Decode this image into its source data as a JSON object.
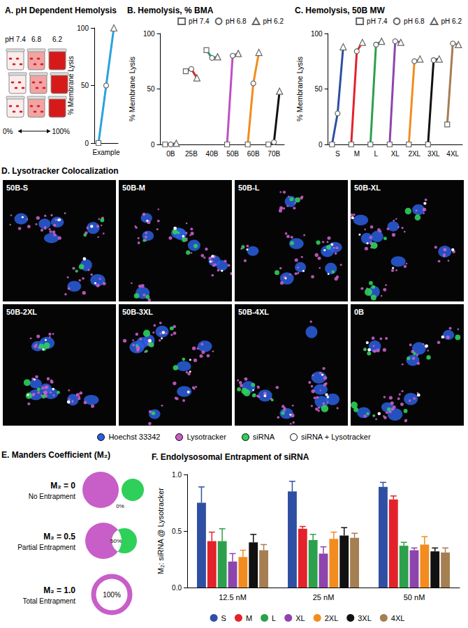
{
  "chart_data": [
    {
      "type": "dot_line",
      "title": "A. pH Dependent Hemolysis",
      "xlabel": "Example",
      "ylabel": "% Membrane Lysis",
      "categories": [
        null
      ],
      "colors": [
        "#29a3dc"
      ],
      "series": [
        {
          "marker": "square",
          "values": [
            0
          ]
        },
        {
          "marker": "circle",
          "values": [
            50
          ]
        },
        {
          "marker": "triangle",
          "values": [
            100
          ]
        }
      ],
      "ylim": [
        0,
        100
      ],
      "yticks": [
        0,
        50,
        100
      ],
      "grid": false,
      "tick_labels": "y"
    },
    {
      "type": "dot_line",
      "title": "B. Hemolysis, % BMA",
      "ylabel": "% Membrane Lysis",
      "categories": [
        "0B",
        "25B",
        "40B",
        "50B",
        "60B",
        "70B"
      ],
      "colors": [
        "#555555",
        "#e3222b",
        "#1f9e89",
        "#c04fc4",
        "#f28c1e",
        "#111111"
      ],
      "series": [
        {
          "name": "pH 7.4",
          "marker": "square",
          "values": [
            0,
            66,
            85,
            0,
            0,
            0
          ]
        },
        {
          "name": "pH 6.8",
          "marker": "circle",
          "values": [
            0,
            68,
            78,
            80,
            55,
            2
          ]
        },
        {
          "name": "pH 6.2",
          "marker": "triangle",
          "values": [
            1,
            60,
            79,
            82,
            83,
            48
          ]
        }
      ],
      "ylim": [
        0,
        100
      ],
      "yticks": [
        0,
        50,
        100
      ],
      "grid": false,
      "legend": "top-right"
    },
    {
      "type": "dot_line",
      "title": "C. Hemolysis, 50B MW",
      "ylabel": "% Membrane Lysis",
      "categories": [
        "S",
        "M",
        "L",
        "XL",
        "2XL",
        "3XL",
        "4XL"
      ],
      "colors": [
        "#2e4fa3",
        "#e3222b",
        "#2ca04c",
        "#8e44ad",
        "#f28c1e",
        "#111111",
        "#a57e52"
      ],
      "series": [
        {
          "name": "pH 7.4",
          "marker": "square",
          "values": [
            0,
            0,
            0,
            0,
            0,
            0,
            18
          ]
        },
        {
          "name": "pH 6.8",
          "marker": "circle",
          "values": [
            28,
            84,
            90,
            93,
            75,
            76,
            91
          ]
        },
        {
          "name": "pH 6.2",
          "marker": "triangle",
          "values": [
            88,
            92,
            93,
            92,
            77,
            77,
            90
          ]
        }
      ],
      "ylim": [
        0,
        100
      ],
      "yticks": [
        0,
        50,
        100
      ],
      "grid": false,
      "legend": "top-right"
    },
    {
      "type": "bar",
      "title": "F. Endolysosomal Entrapment of siRNA",
      "ylabel": "M₂: siRNA @ Lysotracker",
      "categories": [
        "12.5 nM",
        "25 nM",
        "50 nM"
      ],
      "series": [
        {
          "name": "S",
          "color": "#2e4fa3",
          "values": [
            0.75,
            0.85,
            0.89
          ],
          "errors": [
            0.14,
            0.09,
            0.04
          ]
        },
        {
          "name": "M",
          "color": "#e3222b",
          "values": [
            0.41,
            0.52,
            0.78
          ],
          "errors": [
            0.08,
            0.02,
            0.03
          ]
        },
        {
          "name": "L",
          "color": "#2ca04c",
          "values": [
            0.41,
            0.42,
            0.37
          ],
          "errors": [
            0.11,
            0.05,
            0.03
          ]
        },
        {
          "name": "XL",
          "color": "#8e44ad",
          "values": [
            0.23,
            0.3,
            0.33
          ],
          "errors": [
            0.07,
            0.06,
            0.02
          ]
        },
        {
          "name": "2XL",
          "color": "#f28c1e",
          "values": [
            0.27,
            0.43,
            0.38
          ],
          "errors": [
            0.06,
            0.06,
            0.07
          ]
        },
        {
          "name": "3XL",
          "color": "#111111",
          "values": [
            0.4,
            0.46,
            0.32
          ],
          "errors": [
            0.07,
            0.07,
            0.03
          ]
        },
        {
          "name": "4XL",
          "color": "#a57e52",
          "values": [
            0.33,
            0.44,
            0.31
          ],
          "errors": [
            0.05,
            0.04,
            0.04
          ]
        }
      ],
      "ylim": [
        0,
        1
      ],
      "yticks": [
        {
          "value": 0,
          "label": "0.0"
        },
        {
          "value": 0.5,
          "label": "0.5"
        },
        {
          "value": 1,
          "label": "1.0"
        }
      ],
      "grid": false,
      "legend": "bottom",
      "marker": "circle"
    }
  ],
  "illustration": {
    "labels": [
      "pH 7.4",
      "6.8",
      "6.2"
    ],
    "scale": [
      "0%",
      "100%"
    ]
  },
  "micrographs": {
    "title": "D. Lysotracker Colocalization",
    "panels": [
      "50B-S",
      "50B-M",
      "50B-L",
      "50B-XL",
      "50B-2XL",
      "50B-3XL",
      "50B-4XL",
      "0B"
    ],
    "legend": [
      {
        "label": "Hoechst 33342",
        "color": "#2b5fe0"
      },
      {
        "label": "Lysotracker",
        "color": "#c85ec8"
      },
      {
        "label": "siRNA",
        "color": "#2fd05a"
      },
      {
        "label": "siRNA + Lysotracker",
        "color": "#ffffff"
      }
    ]
  },
  "diagram": {
    "title": "E. Manders Coefficient (M₂)",
    "rows": [
      {
        "label": "M₂ = 0",
        "caption": "No Entrapment",
        "overlap": "0%"
      },
      {
        "label": "M₂ = 0.5",
        "caption": "Partial Entrapment",
        "overlap": "50%"
      },
      {
        "label": "M₂ = 1.0",
        "caption": "Total Entrapment",
        "overlap": "100%"
      }
    ]
  }
}
